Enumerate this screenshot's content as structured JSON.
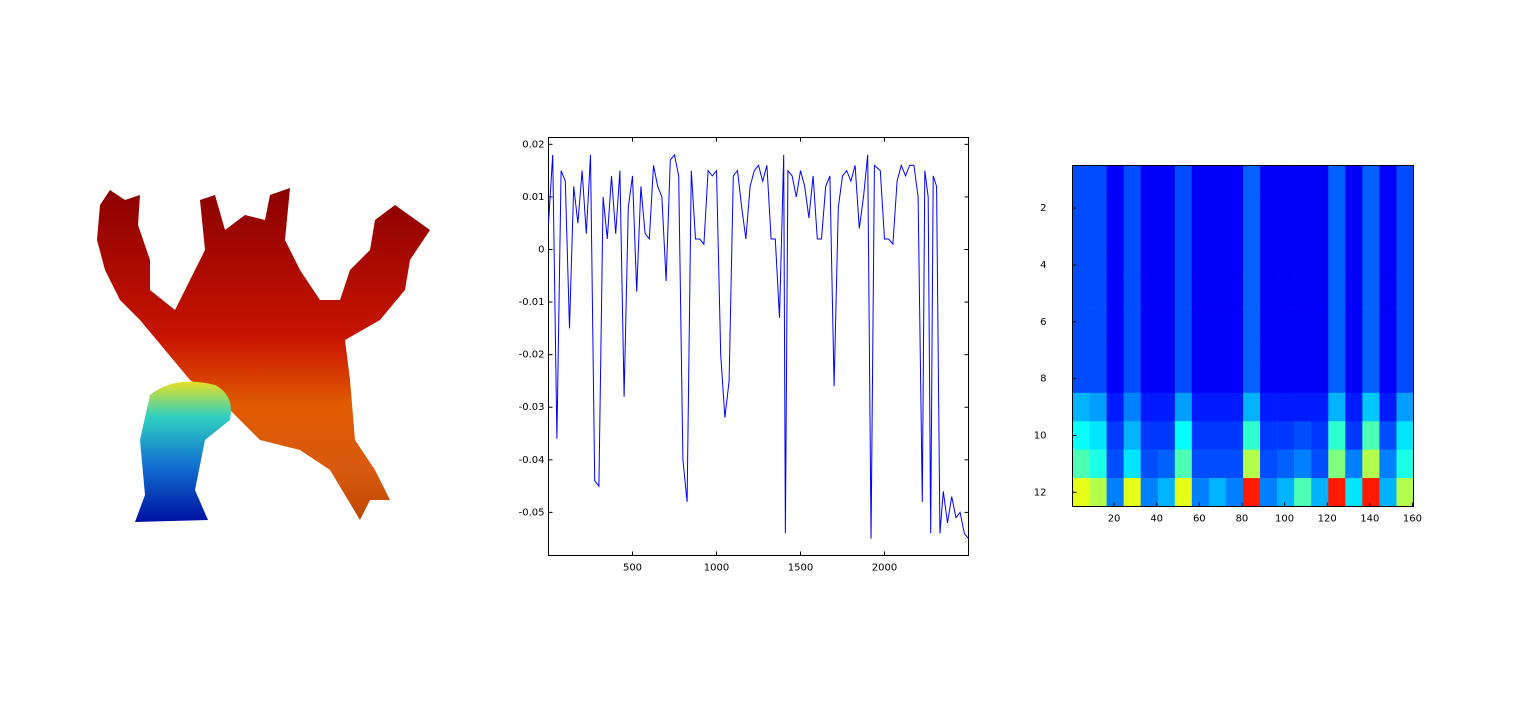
{
  "chart_data": [
    {
      "type": "line",
      "color": "#0000ff",
      "x": [
        0,
        25,
        50,
        75,
        100,
        125,
        150,
        175,
        200,
        225,
        250,
        275,
        300,
        325,
        350,
        375,
        400,
        425,
        450,
        475,
        500,
        525,
        550,
        575,
        600,
        625,
        650,
        675,
        700,
        725,
        750,
        775,
        800,
        825,
        850,
        875,
        900,
        925,
        950,
        975,
        1000,
        1025,
        1050,
        1075,
        1100,
        1125,
        1150,
        1175,
        1200,
        1225,
        1250,
        1275,
        1300,
        1325,
        1350,
        1375,
        1400,
        1410,
        1425,
        1450,
        1475,
        1500,
        1525,
        1550,
        1575,
        1600,
        1625,
        1650,
        1675,
        1700,
        1725,
        1750,
        1775,
        1800,
        1825,
        1850,
        1875,
        1900,
        1920,
        1940,
        1975,
        2000,
        2025,
        2050,
        2075,
        2100,
        2125,
        2150,
        2175,
        2200,
        2225,
        2240,
        2260,
        2275,
        2290,
        2310,
        2330,
        2350,
        2375,
        2400,
        2425,
        2450,
        2475,
        2500
      ],
      "y": [
        0.005,
        0.018,
        -0.036,
        0.015,
        0.013,
        -0.015,
        0.012,
        0.005,
        0.015,
        0.003,
        0.018,
        -0.044,
        -0.045,
        0.01,
        0.002,
        0.014,
        0.003,
        0.015,
        -0.028,
        0.008,
        0.014,
        -0.008,
        0.012,
        0.003,
        0.002,
        0.016,
        0.012,
        0.01,
        -0.006,
        0.017,
        0.018,
        0.014,
        -0.04,
        -0.048,
        0.015,
        0.002,
        0.002,
        0.001,
        0.015,
        0.014,
        0.015,
        -0.02,
        -0.032,
        -0.025,
        0.014,
        0.015,
        0.008,
        0.002,
        0.012,
        0.015,
        0.016,
        0.013,
        0.016,
        0.002,
        0.002,
        -0.013,
        0.018,
        -0.054,
        0.015,
        0.014,
        0.01,
        0.015,
        0.012,
        0.006,
        0.014,
        0.002,
        0.002,
        0.012,
        0.014,
        -0.026,
        0.008,
        0.014,
        0.015,
        0.013,
        0.016,
        0.004,
        0.01,
        0.018,
        -0.055,
        0.016,
        0.015,
        0.002,
        0.002,
        0.001,
        0.013,
        0.016,
        0.014,
        0.016,
        0.016,
        0.01,
        -0.048,
        0.015,
        0.01,
        -0.054,
        0.014,
        0.012,
        -0.054,
        -0.046,
        -0.052,
        -0.047,
        -0.051,
        -0.05,
        -0.054,
        -0.055
      ],
      "xlim": [
        0,
        2500
      ],
      "ylim": [
        -0.0582,
        0.0213
      ],
      "xticks": [
        500,
        1000,
        1500,
        2000
      ],
      "yticks": [
        0.02,
        0.01,
        0,
        -0.01,
        -0.02,
        -0.03,
        -0.04,
        -0.05
      ]
    },
    {
      "type": "heatmap",
      "colormap": "jet",
      "zlim": [
        0,
        1
      ],
      "bins": [
        0.5,
        8.5,
        16.5,
        24.5,
        32.5,
        40.5,
        48.5,
        56.5,
        64.5,
        72.5,
        80.5,
        88.5,
        96.5,
        104.5,
        112.5,
        120.5,
        128.5,
        136.5,
        144.5,
        152.5,
        160.5
      ],
      "rows": [
        1,
        2,
        3,
        4,
        5,
        6,
        7,
        8,
        9,
        10,
        11,
        12
      ],
      "z": [
        [
          0.2,
          0.2,
          0.12,
          0.2,
          0.12,
          0.12,
          0.2,
          0.12,
          0.12,
          0.12,
          0.22,
          0.12,
          0.12,
          0.12,
          0.12,
          0.22,
          0.12,
          0.22,
          0.12,
          0.2
        ],
        [
          0.2,
          0.2,
          0.12,
          0.2,
          0.12,
          0.12,
          0.2,
          0.12,
          0.12,
          0.12,
          0.22,
          0.12,
          0.12,
          0.12,
          0.12,
          0.22,
          0.12,
          0.22,
          0.12,
          0.2
        ],
        [
          0.2,
          0.2,
          0.12,
          0.2,
          0.12,
          0.12,
          0.2,
          0.12,
          0.12,
          0.12,
          0.22,
          0.12,
          0.12,
          0.12,
          0.12,
          0.22,
          0.12,
          0.22,
          0.12,
          0.2
        ],
        [
          0.2,
          0.2,
          0.12,
          0.2,
          0.12,
          0.12,
          0.2,
          0.12,
          0.12,
          0.12,
          0.22,
          0.12,
          0.12,
          0.12,
          0.12,
          0.22,
          0.12,
          0.22,
          0.12,
          0.2
        ],
        [
          0.2,
          0.2,
          0.12,
          0.2,
          0.12,
          0.12,
          0.2,
          0.12,
          0.12,
          0.12,
          0.22,
          0.12,
          0.12,
          0.12,
          0.12,
          0.22,
          0.12,
          0.22,
          0.12,
          0.2
        ],
        [
          0.2,
          0.2,
          0.12,
          0.2,
          0.12,
          0.12,
          0.2,
          0.12,
          0.12,
          0.12,
          0.22,
          0.12,
          0.12,
          0.12,
          0.12,
          0.22,
          0.12,
          0.22,
          0.12,
          0.2
        ],
        [
          0.2,
          0.2,
          0.12,
          0.2,
          0.12,
          0.12,
          0.2,
          0.12,
          0.12,
          0.12,
          0.22,
          0.12,
          0.12,
          0.12,
          0.12,
          0.22,
          0.12,
          0.22,
          0.12,
          0.2
        ],
        [
          0.2,
          0.2,
          0.12,
          0.2,
          0.12,
          0.12,
          0.2,
          0.12,
          0.12,
          0.12,
          0.22,
          0.12,
          0.12,
          0.12,
          0.12,
          0.22,
          0.12,
          0.22,
          0.12,
          0.2
        ],
        [
          0.3,
          0.28,
          0.15,
          0.25,
          0.15,
          0.15,
          0.28,
          0.15,
          0.15,
          0.15,
          0.3,
          0.15,
          0.15,
          0.15,
          0.15,
          0.3,
          0.15,
          0.32,
          0.15,
          0.28
        ],
        [
          0.38,
          0.35,
          0.18,
          0.3,
          0.18,
          0.18,
          0.38,
          0.18,
          0.18,
          0.18,
          0.42,
          0.18,
          0.18,
          0.2,
          0.18,
          0.42,
          0.18,
          0.45,
          0.2,
          0.35
        ],
        [
          0.45,
          0.4,
          0.2,
          0.35,
          0.2,
          0.22,
          0.45,
          0.2,
          0.2,
          0.2,
          0.55,
          0.2,
          0.22,
          0.25,
          0.2,
          0.5,
          0.25,
          0.55,
          0.25,
          0.4
        ],
        [
          0.6,
          0.55,
          0.25,
          0.6,
          0.25,
          0.3,
          0.6,
          0.25,
          0.3,
          0.25,
          0.85,
          0.25,
          0.3,
          0.45,
          0.3,
          0.85,
          0.35,
          0.85,
          0.3,
          0.55
        ]
      ],
      "xlim": [
        0.5,
        160.5
      ],
      "ylim": [
        0.5,
        12.5
      ],
      "xticks": [
        20,
        40,
        60,
        80,
        100,
        120,
        140,
        160
      ],
      "yticks": [
        2,
        4,
        6,
        8,
        10,
        12
      ]
    }
  ]
}
